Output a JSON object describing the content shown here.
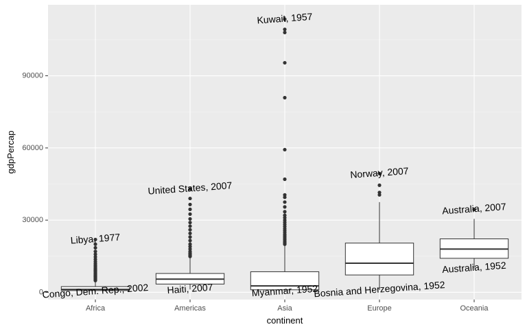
{
  "chart_data": {
    "type": "boxplot",
    "xlabel": "continent",
    "ylabel": "gdpPercap",
    "categories": [
      "Africa",
      "Americas",
      "Asia",
      "Europe",
      "Oceania"
    ],
    "y_ticks": [
      0,
      30000,
      60000,
      90000
    ],
    "y_tick_labels": [
      "0",
      "30000",
      "60000",
      "90000"
    ],
    "ylim": [
      -3000,
      119500
    ],
    "grid": true,
    "colors": {
      "panel": "#ebebeb",
      "grid_major": "#ffffff",
      "grid_minor": "#f5f5f5",
      "box_fill": "#ffffff",
      "box_line": "#333333",
      "outlier": "#333333"
    },
    "boxes": [
      {
        "category": "Africa",
        "whisker_low": 241,
        "q1": 761,
        "median": 1192,
        "q3": 2377,
        "whisker_high": 4700,
        "outliers": [
          4900,
          5150,
          5400,
          5700,
          6000,
          6250,
          6500,
          6800,
          7100,
          7400,
          7700,
          8000,
          8400,
          8800,
          9200,
          9600,
          10100,
          10700,
          11300,
          12000,
          12800,
          13700,
          14700,
          15800,
          17000,
          18500,
          20000,
          21951
        ]
      },
      {
        "category": "Americas",
        "whisker_low": 1202,
        "q1": 3428,
        "median": 5466,
        "q3": 7831,
        "whisker_high": 14500,
        "outliers": [
          14900,
          15300,
          15800,
          16300,
          17000,
          18000,
          19000,
          20000,
          21500,
          23000,
          24500,
          26000,
          27500,
          29000,
          30500,
          32500,
          34500,
          36500,
          39000,
          42952
        ]
      },
      {
        "category": "Asia",
        "whisker_low": 331,
        "q1": 1057,
        "median": 2647,
        "q3": 8549,
        "whisker_high": 19500,
        "outliers": [
          20000,
          20600,
          21200,
          21900,
          22600,
          23300,
          24000,
          24800,
          25600,
          26400,
          27300,
          28200,
          29100,
          30000,
          31000,
          32000,
          33500,
          35500,
          37500,
          39500,
          40500,
          47000,
          59300,
          80900,
          95400,
          108000,
          109300,
          113523
        ]
      },
      {
        "category": "Europe",
        "whisker_low": 973,
        "q1": 7213,
        "median": 12082,
        "q3": 20461,
        "whisker_high": 37500,
        "outliers": [
          40500,
          41500,
          44500,
          49357
        ]
      },
      {
        "category": "Oceania",
        "whisker_low": 10040,
        "q1": 14142,
        "median": 17983,
        "q3": 22214,
        "whisker_high": 30500,
        "outliers": [
          34435
        ]
      }
    ],
    "annotations": [
      {
        "text": "Libya, 1977",
        "category": "Africa",
        "y": 21951
      },
      {
        "text": "Congo, Dem. Rep., 2002",
        "category": "Africa",
        "y": 241
      },
      {
        "text": "United States, 2007",
        "category": "Americas",
        "y": 42952
      },
      {
        "text": "Haiti, 2007",
        "category": "Americas",
        "y": 1202
      },
      {
        "text": "Kuwait, 1957",
        "category": "Asia",
        "y": 113523
      },
      {
        "text": "Myanmar, 1952",
        "category": "Asia",
        "y": 331
      },
      {
        "text": "Norway, 2007",
        "category": "Europe",
        "y": 49357
      },
      {
        "text": "Bosnia and Herzegovina, 1952",
        "category": "Europe",
        "y": 973
      },
      {
        "text": "Australia, 2007",
        "category": "Oceania",
        "y": 34435
      },
      {
        "text": "Australia, 1952",
        "category": "Oceania",
        "y": 10040
      }
    ]
  }
}
